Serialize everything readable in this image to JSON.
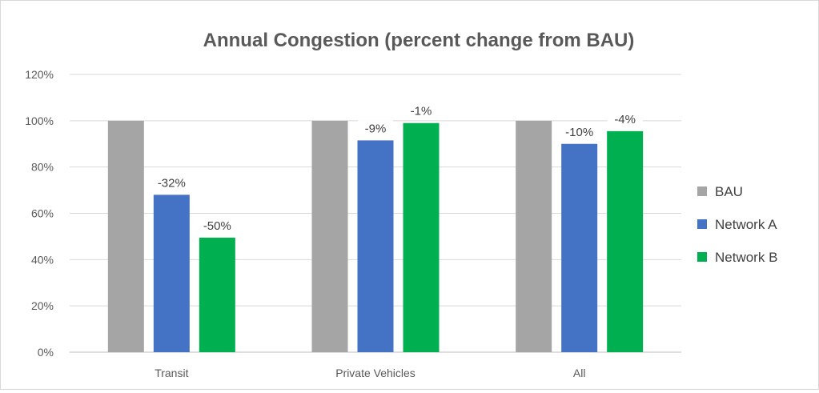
{
  "chart_data": {
    "type": "bar",
    "title": "Annual Congestion (percent change from BAU)",
    "categories": [
      "Transit",
      "Private Vehicles",
      "All"
    ],
    "series": [
      {
        "name": "BAU",
        "values": [
          100,
          100,
          100
        ],
        "color": "#a5a5a5",
        "labels": [
          "",
          "",
          ""
        ]
      },
      {
        "name": "Network A",
        "values": [
          68,
          91.5,
          90
        ],
        "color": "#4472c4",
        "labels": [
          "-32%",
          "-9%",
          "-10%"
        ]
      },
      {
        "name": "Network B",
        "values": [
          49.5,
          99,
          95.5
        ],
        "color": "#00b050",
        "labels": [
          "-50%",
          "-1%",
          "-4%"
        ]
      }
    ],
    "ylim": [
      0,
      120
    ],
    "yticks": [
      0,
      20,
      40,
      60,
      80,
      100,
      120
    ],
    "ytick_labels": [
      "0%",
      "20%",
      "40%",
      "60%",
      "80%",
      "100%",
      "120%"
    ],
    "grid": true,
    "legend_position": "right"
  }
}
